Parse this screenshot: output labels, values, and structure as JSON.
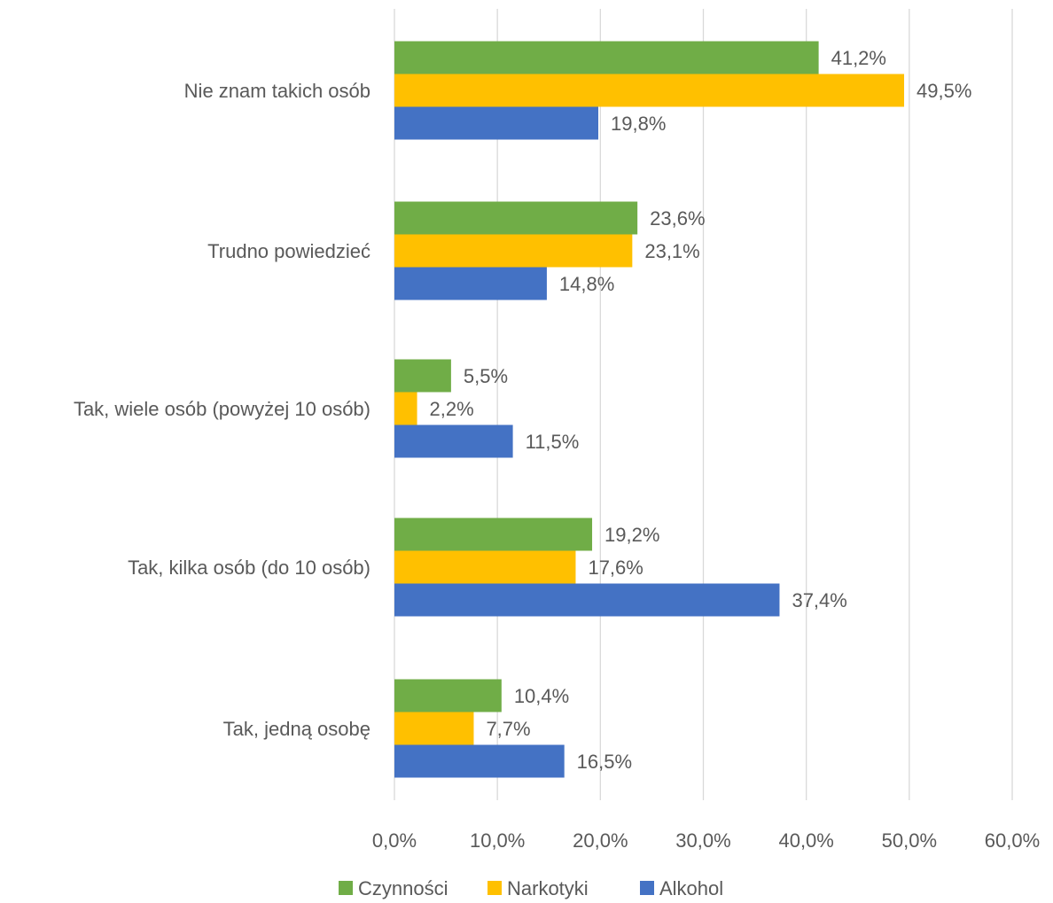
{
  "chart_data": {
    "type": "bar",
    "orientation": "horizontal",
    "categories": [
      "Nie znam takich osób",
      "Trudno powiedzieć",
      "Tak, wiele osób (powyżej 10 osób)",
      "Tak, kilka osób (do 10 osób)",
      "Tak, jedną osobę"
    ],
    "series": [
      {
        "name": "Czynności",
        "color": "#70ad47",
        "values": [
          41.2,
          23.6,
          5.5,
          19.2,
          10.4
        ],
        "labels": [
          "41,2%",
          "23,6%",
          "5,5%",
          "19,2%",
          "10,4%"
        ]
      },
      {
        "name": "Narkotyki",
        "color": "#ffc000",
        "values": [
          49.5,
          23.1,
          2.2,
          17.6,
          7.7
        ],
        "labels": [
          "49,5%",
          "23,1%",
          "2,2%",
          "17,6%",
          "7,7%"
        ]
      },
      {
        "name": "Alkohol",
        "color": "#4472c4",
        "values": [
          19.8,
          14.8,
          11.5,
          37.4,
          16.5
        ],
        "labels": [
          "19,8%",
          "14,8%",
          "11,5%",
          "37,4%",
          "16,5%"
        ]
      }
    ],
    "x_ticks": [
      0,
      10,
      20,
      30,
      40,
      50,
      60
    ],
    "x_tick_labels": [
      "0,0%",
      "10,0%",
      "20,0%",
      "30,0%",
      "40,0%",
      "50,0%",
      "60,0%"
    ],
    "xlim": [
      0,
      60
    ],
    "unit": "%",
    "grid": true,
    "legend_position": "bottom",
    "title": "",
    "xlabel": "",
    "ylabel": ""
  }
}
